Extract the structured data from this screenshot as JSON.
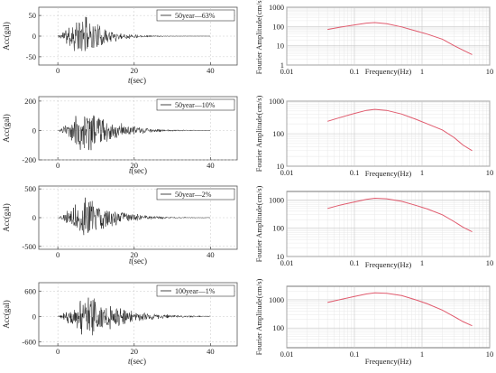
{
  "figure": {
    "colors": {
      "accel_trace": "#1a1a1a",
      "spectrum_line": "#e05a6d",
      "grid": "#c9c9c9",
      "axes": "#555555"
    }
  },
  "chart_data": [
    {
      "type": "line",
      "legend": "50year—63%",
      "legend_position": "top-right",
      "xlabel": "t(sec)",
      "ylabel": "Acc(gal)",
      "xlim": [
        -5,
        47
      ],
      "ylim": [
        -70,
        70
      ],
      "xticks": [
        0,
        20,
        40
      ],
      "yticks": [
        -50,
        0,
        50
      ],
      "grid": true,
      "series": [
        {
          "peak_abs": 60,
          "strong_start": 0.5,
          "peak_time": 7.0,
          "decay": 5.5,
          "duration": 40,
          "seed": 11
        }
      ]
    },
    {
      "type": "line",
      "xlabel": "Frequency(Hz)",
      "ylabel": "Fourier Amplitude(cm/s)",
      "xscale": "log",
      "yscale": "log",
      "xlim": [
        0.01,
        10
      ],
      "ylim": [
        1,
        1000
      ],
      "xticks": [
        0.01,
        0.1,
        1,
        10
      ],
      "yticks": [
        1,
        10,
        100,
        1000
      ],
      "grid": true,
      "series": [
        {
          "x": [
            0.04,
            0.06,
            0.1,
            0.15,
            0.2,
            0.3,
            0.5,
            0.8,
            1.2,
            2,
            3,
            4,
            5.5
          ],
          "y": [
            70,
            90,
            120,
            150,
            160,
            140,
            95,
            60,
            40,
            22,
            10,
            6,
            3.5
          ]
        }
      ]
    },
    {
      "type": "line",
      "legend": "50year—10%",
      "legend_position": "top-right",
      "xlabel": "t(sec)",
      "ylabel": "Acc(gal)",
      "xlim": [
        -5,
        47
      ],
      "ylim": [
        -200,
        230
      ],
      "xticks": [
        0,
        20,
        40
      ],
      "yticks": [
        -200,
        0,
        200
      ],
      "grid": true,
      "series": [
        {
          "peak_abs": 200,
          "strong_start": 1.5,
          "peak_time": 8.0,
          "decay": 6.5,
          "duration": 40,
          "seed": 23
        }
      ]
    },
    {
      "type": "line",
      "xlabel": "Frequency(Hz)",
      "ylabel": "Fourier Amplitude(cm/s)",
      "xscale": "log",
      "yscale": "log",
      "xlim": [
        0.01,
        10
      ],
      "ylim": [
        10,
        1000
      ],
      "xticks": [
        0.01,
        0.1,
        1,
        10
      ],
      "yticks": [
        10,
        100,
        1000
      ],
      "grid": true,
      "series": [
        {
          "x": [
            0.04,
            0.06,
            0.1,
            0.15,
            0.2,
            0.3,
            0.5,
            0.8,
            1.2,
            2,
            3,
            4,
            5.5
          ],
          "y": [
            240,
            310,
            420,
            520,
            560,
            520,
            400,
            280,
            200,
            130,
            75,
            45,
            30
          ]
        }
      ]
    },
    {
      "type": "line",
      "legend": "50year—2%",
      "legend_position": "top-right",
      "xlabel": "t(sec)",
      "ylabel": "Acc(gal)",
      "xlim": [
        -5,
        47
      ],
      "ylim": [
        -550,
        550
      ],
      "xticks": [
        0,
        20,
        40
      ],
      "yticks": [
        -500,
        0,
        500
      ],
      "grid": true,
      "series": [
        {
          "peak_abs": 450,
          "strong_start": 1.5,
          "peak_time": 7.5,
          "decay": 7.0,
          "duration": 40,
          "seed": 37
        }
      ]
    },
    {
      "type": "line",
      "xlabel": "Frequency(Hz)",
      "ylabel": "Fourier Amplitude(cm/s)",
      "xscale": "log",
      "yscale": "log",
      "xlim": [
        0.01,
        10
      ],
      "ylim": [
        10,
        2000
      ],
      "xticks": [
        0.01,
        0.1,
        1,
        10
      ],
      "yticks": [
        10,
        100,
        1000
      ],
      "grid": true,
      "series": [
        {
          "x": [
            0.04,
            0.06,
            0.1,
            0.15,
            0.2,
            0.3,
            0.5,
            0.8,
            1.2,
            2,
            3,
            4,
            5.5
          ],
          "y": [
            500,
            650,
            850,
            1050,
            1150,
            1100,
            900,
            650,
            480,
            300,
            170,
            110,
            75
          ]
        }
      ]
    },
    {
      "type": "line",
      "legend": "100year—1%",
      "legend_position": "top-right",
      "xlabel": "t(sec)",
      "ylabel": "Acc(gal)",
      "xlim": [
        -5,
        47
      ],
      "ylim": [
        -700,
        800
      ],
      "xticks": [
        0,
        20,
        40
      ],
      "yticks": [
        -600,
        0,
        600
      ],
      "grid": true,
      "series": [
        {
          "peak_abs": 650,
          "strong_start": 1.5,
          "peak_time": 8.0,
          "decay": 8.0,
          "duration": 40,
          "seed": 51
        }
      ]
    },
    {
      "type": "line",
      "xlabel": "Frequency(Hz)",
      "ylabel": "Fourier Amplitude(cm/s)",
      "xscale": "log",
      "yscale": "log",
      "xlim": [
        0.01,
        10
      ],
      "ylim": [
        20,
        3000
      ],
      "xticks": [
        0.01,
        0.1,
        1,
        10
      ],
      "yticks": [
        100,
        1000
      ],
      "grid": true,
      "series": [
        {
          "x": [
            0.04,
            0.06,
            0.1,
            0.15,
            0.2,
            0.3,
            0.5,
            0.8,
            1.2,
            2,
            3,
            4,
            5.5
          ],
          "y": [
            800,
            1000,
            1300,
            1600,
            1750,
            1700,
            1400,
            1000,
            720,
            430,
            250,
            170,
            120
          ]
        }
      ]
    }
  ]
}
